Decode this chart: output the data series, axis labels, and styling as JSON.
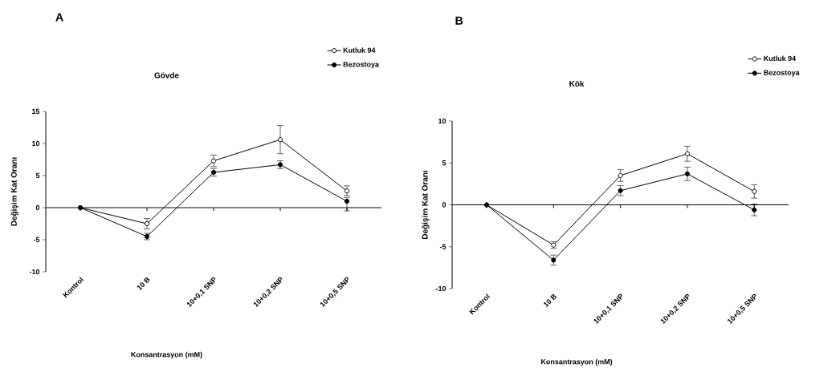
{
  "chart_data": [
    {
      "type": "line",
      "title": "Gövde",
      "xlabel": "Konsantrasyon (mM)",
      "ylabel": "Değişim Kat Oranı",
      "annotations": [
        "A"
      ],
      "categories": [
        "Kontrol",
        "10 B",
        "10+0,1 SNP",
        "10+0,2 SNP",
        "10+0,5 SNP"
      ],
      "series": [
        {
          "name": "Kutluk 94",
          "color": "#000000",
          "values": [
            0,
            -2.5,
            7.3,
            10.6,
            2.6
          ],
          "errors": [
            null,
            0.8,
            0.9,
            2.2,
            [
              1.9,
              3.4
            ]
          ]
        },
        {
          "name": "Bezostoya",
          "color": "#000000",
          "values": [
            0,
            -4.5,
            5.5,
            6.7,
            1.0
          ],
          "errors": [
            null,
            0.5,
            0.6,
            0.6,
            [
              -0.5,
              1.6
            ]
          ]
        }
      ],
      "ylim": [
        -10,
        15
      ],
      "yticks": [
        -10,
        -5,
        0,
        5,
        10,
        15
      ],
      "ref_lines": [
        {
          "axis": "y",
          "value": 0
        }
      ],
      "marker": "circle",
      "line_style": "solid",
      "legend": "top right"
    },
    {
      "type": "line",
      "title": "Kök",
      "xlabel": "Konsantrasyon (mM)",
      "ylabel": "Değişim Kat Oranı",
      "annotations": [
        "B"
      ],
      "categories": [
        "Kontrol",
        "10 B",
        "10+0,1 SNP",
        "10+0,2 SNP",
        "10+0,5 SNP"
      ],
      "series": [
        {
          "name": "Kutluk 94",
          "color": "#000000",
          "values": [
            0,
            -4.8,
            3.5,
            6.1,
            1.6
          ],
          "errors": [
            null,
            0.4,
            0.7,
            0.9,
            0.8
          ]
        },
        {
          "name": "Bezostoya",
          "color": "#000000",
          "values": [
            0,
            -6.6,
            1.7,
            3.7,
            -0.6
          ],
          "errors": [
            null,
            0.6,
            0.6,
            0.8,
            0.7
          ]
        }
      ],
      "ylim": [
        -10,
        10
      ],
      "yticks": [
        -10,
        -5,
        0,
        5,
        10
      ],
      "ref_lines": [
        {
          "axis": "y",
          "value": 0
        }
      ],
      "marker": "circle",
      "line_style": "solid",
      "legend": "top right"
    }
  ]
}
